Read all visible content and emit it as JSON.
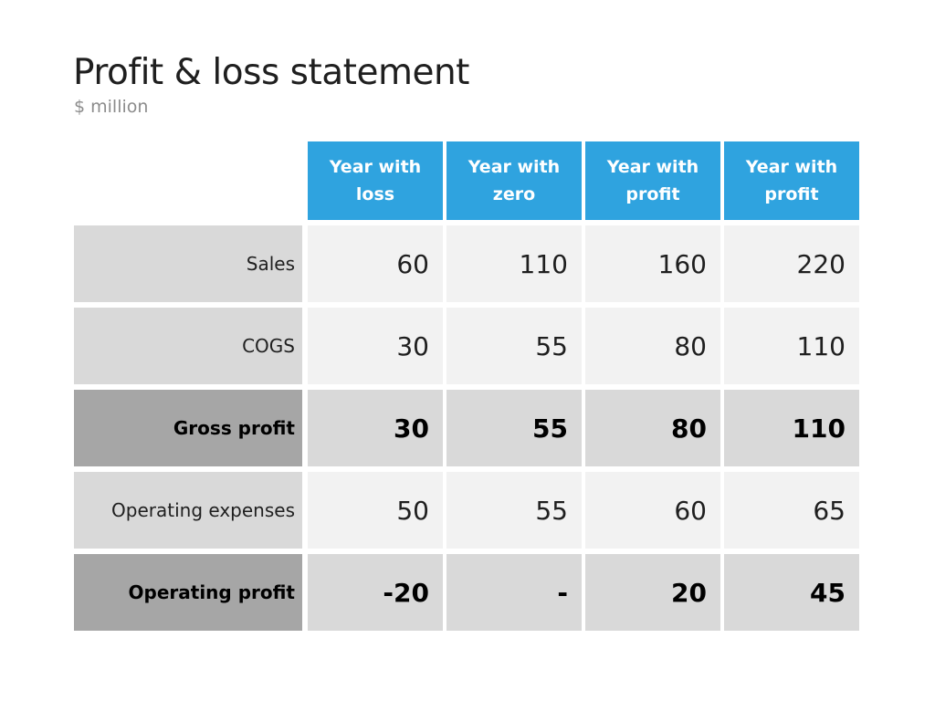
{
  "title": "Profit & loss statement",
  "subtitle": "$ million",
  "colors": {
    "header_bg": "#2fa3df",
    "header_text": "#ffffff",
    "label_bg": "#d9d9d9",
    "label_bold_bg": "#a6a6a6",
    "value_bg": "#f2f2f2",
    "value_bold_bg": "#d9d9d9"
  },
  "chart_data": {
    "type": "table",
    "title": "Profit & loss statement",
    "subtitle": "$ million",
    "columns": [
      [
        "Year with",
        "loss"
      ],
      [
        "Year with",
        "zero"
      ],
      [
        "Year with",
        "profit"
      ],
      [
        "Year with",
        "profit"
      ]
    ],
    "rows": [
      {
        "label": "Sales",
        "values": [
          "60",
          "110",
          "160",
          "220"
        ],
        "bold": false
      },
      {
        "label": "COGS",
        "values": [
          "30",
          "55",
          "80",
          "110"
        ],
        "bold": false
      },
      {
        "label": "Gross profit",
        "values": [
          "30",
          "55",
          "80",
          "110"
        ],
        "bold": true
      },
      {
        "label": "Operating expenses",
        "values": [
          "50",
          "55",
          "60",
          "65"
        ],
        "bold": false
      },
      {
        "label": "Operating profit",
        "values": [
          "-20",
          "-",
          "20",
          "45"
        ],
        "bold": true
      }
    ]
  }
}
